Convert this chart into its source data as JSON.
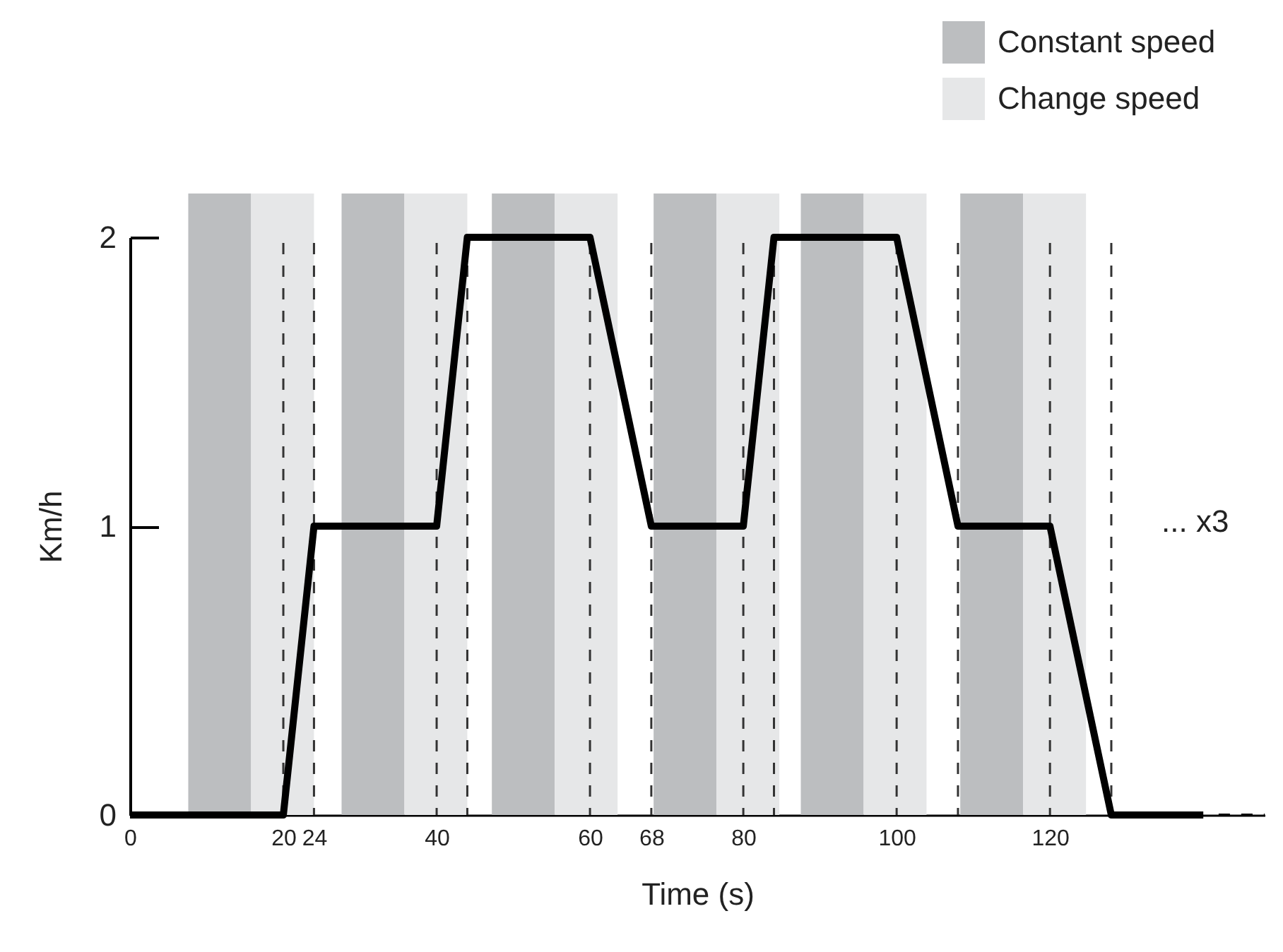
{
  "chart_data": {
    "type": "line",
    "xlabel": "Time (s)",
    "ylabel": "Km/h",
    "xlim": [
      0,
      148
    ],
    "ylim": [
      0,
      2
    ],
    "xticks": [
      0,
      20,
      24,
      40,
      60,
      68,
      80,
      100,
      120
    ],
    "yticks": [
      0,
      1,
      2
    ],
    "series": [
      {
        "color": "#000000",
        "x": [
          0,
          20,
          24,
          40,
          44,
          60,
          68,
          80,
          84,
          100,
          108,
          120,
          128,
          140
        ],
        "values": [
          0,
          0,
          1,
          1,
          2,
          2,
          1,
          1,
          2,
          2,
          1,
          1,
          0,
          0
        ],
        "line_style": "solid"
      },
      {
        "color": "#000000",
        "x": [
          142,
          148
        ],
        "values": [
          0,
          0
        ],
        "line_style": "dashed"
      }
    ],
    "bands": [
      {
        "axis": "x",
        "from": 7.6,
        "to": 15.8,
        "label": "Constant speed",
        "color": "#bcbec0"
      },
      {
        "axis": "x",
        "from": 15.8,
        "to": 24,
        "label": "Change speed",
        "color": "#e6e7e8"
      },
      {
        "axis": "x",
        "from": 27.6,
        "to": 35.8,
        "color": "#bcbec0"
      },
      {
        "axis": "x",
        "from": 35.8,
        "to": 44,
        "color": "#e6e7e8"
      },
      {
        "axis": "x",
        "from": 47.2,
        "to": 55.4,
        "color": "#bcbec0"
      },
      {
        "axis": "x",
        "from": 55.4,
        "to": 63.6,
        "color": "#e6e7e8"
      },
      {
        "axis": "x",
        "from": 68.3,
        "to": 76.5,
        "color": "#bcbec0"
      },
      {
        "axis": "x",
        "from": 76.5,
        "to": 84.7,
        "color": "#e6e7e8"
      },
      {
        "axis": "x",
        "from": 87.5,
        "to": 95.7,
        "color": "#bcbec0"
      },
      {
        "axis": "x",
        "from": 95.7,
        "to": 103.9,
        "color": "#e6e7e8"
      },
      {
        "axis": "x",
        "from": 108.3,
        "to": 116.5,
        "color": "#bcbec0"
      },
      {
        "axis": "x",
        "from": 116.5,
        "to": 124.7,
        "color": "#e6e7e8"
      }
    ],
    "ref_lines": [
      {
        "axis": "x",
        "value": 20,
        "line_style": "dashed"
      },
      {
        "axis": "x",
        "value": 24,
        "line_style": "dashed"
      },
      {
        "axis": "x",
        "value": 40,
        "line_style": "dashed"
      },
      {
        "axis": "x",
        "value": 44,
        "line_style": "dashed"
      },
      {
        "axis": "x",
        "value": 60,
        "line_style": "dashed"
      },
      {
        "axis": "x",
        "value": 68,
        "line_style": "dashed"
      },
      {
        "axis": "x",
        "value": 80,
        "line_style": "dashed"
      },
      {
        "axis": "x",
        "value": 84,
        "line_style": "dashed"
      },
      {
        "axis": "x",
        "value": 100,
        "line_style": "dashed"
      },
      {
        "axis": "x",
        "value": 108,
        "line_style": "dashed"
      },
      {
        "axis": "x",
        "value": 120,
        "line_style": "dashed"
      },
      {
        "axis": "x",
        "value": 128,
        "line_style": "dashed"
      }
    ],
    "annotations": [
      "... x3"
    ],
    "legend": "top right",
    "grid": false,
    "marker": "none"
  }
}
